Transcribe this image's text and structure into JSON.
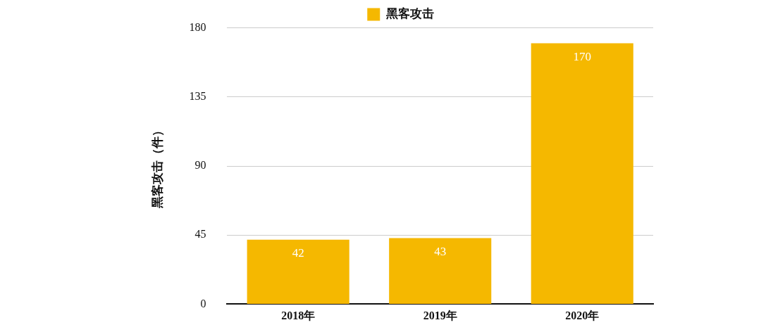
{
  "chart_data": {
    "type": "bar",
    "ylabel": "黑客攻击（件）",
    "categories": [
      "2018年",
      "2019年",
      "2020年"
    ],
    "series": [
      {
        "name": "黑客攻击",
        "color": "#f5b800",
        "values": [
          42,
          43,
          170
        ]
      }
    ],
    "ylim": [
      0,
      180
    ],
    "yticks": [
      0,
      45,
      90,
      135,
      180
    ],
    "grid": "y",
    "legend": "top",
    "data_labels": true
  }
}
